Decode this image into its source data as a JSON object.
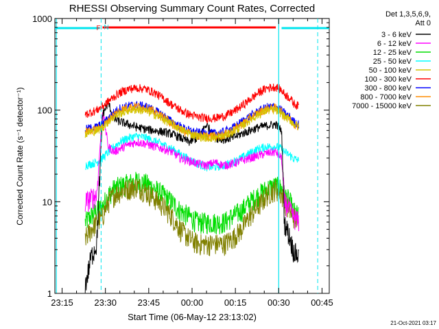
{
  "colors": {
    "background": "#ffffff",
    "axis": "#000000",
    "cyan_marker": "#00e5ee",
    "red_bar": "#ff0000"
  },
  "chart_data": {
    "type": "line",
    "title": "RHESSI Observing Summary Count Rates, Corrected",
    "xlabel": "Start Time (06-May-12 23:13:02)",
    "ylabel": "Corrected Count Rate (s⁻¹ detector⁻¹)",
    "yscale": "log",
    "ylim": [
      1,
      1000
    ],
    "xlim": [
      -0.5,
      94.5
    ],
    "x_units": "minutes after 23:13:02",
    "x_ticks": [
      {
        "x": 2,
        "label": "23:15"
      },
      {
        "x": 17,
        "label": "23:30"
      },
      {
        "x": 32,
        "label": "23:45"
      },
      {
        "x": 47,
        "label": "00:00"
      },
      {
        "x": 62,
        "label": "00:15"
      },
      {
        "x": 77,
        "label": "00:30"
      },
      {
        "x": 92,
        "label": "00:45"
      }
    ],
    "y_ticks": [
      {
        "y": 1,
        "label": "1"
      },
      {
        "y": 10,
        "label": "10"
      },
      {
        "y": 100,
        "label": "100"
      },
      {
        "y": 1000,
        "label": "1000"
      }
    ],
    "legend_header": [
      "Det 1,3,5,6,9,",
      "Att 0"
    ],
    "legend_position": "top-right, outside plot",
    "timestamp": "21-Oct-2021 03:17",
    "markers": {
      "F_label": "F",
      "N_label": "N",
      "flare_bar": {
        "x_start": 16,
        "x_end": 76,
        "y": 800
      },
      "night_start": -0.5,
      "night_end": 94.5,
      "day_segments": [
        [
          -0.5,
          15
        ],
        [
          78,
          94.5
        ]
      ],
      "saa_dashed_x": [
        15.5,
        90.5
      ],
      "solid_lines_x": [
        0,
        77
      ]
    },
    "series": [
      {
        "name": "3 - 6 keV",
        "color": "#000000",
        "x": [
          10,
          12,
          14,
          16,
          18,
          20,
          22,
          25,
          28,
          31,
          34,
          37,
          40,
          43,
          46,
          49,
          52,
          55,
          58,
          61,
          64,
          67,
          70,
          73,
          76,
          78,
          79,
          81,
          82,
          84
        ],
        "y": [
          1.2,
          2.5,
          3.5,
          90,
          120,
          80,
          75,
          70,
          65,
          62,
          60,
          58,
          55,
          50,
          45,
          50,
          70,
          50,
          48,
          50,
          55,
          60,
          65,
          68,
          70,
          60,
          6,
          4,
          3,
          2.5
        ]
      },
      {
        "name": "6 - 12 keV",
        "color": "#ff00ff",
        "x": [
          10,
          12,
          14,
          16,
          18,
          20,
          22,
          25,
          28,
          31,
          34,
          37,
          40,
          43,
          46,
          49,
          52,
          55,
          58,
          61,
          64,
          67,
          70,
          73,
          76,
          78,
          79,
          81,
          82,
          84
        ],
        "y": [
          10,
          11,
          12,
          100,
          40,
          35,
          38,
          42,
          45,
          43,
          40,
          38,
          35,
          30,
          28,
          26,
          25,
          27,
          25,
          26,
          28,
          30,
          32,
          34,
          35,
          30,
          10,
          8,
          7,
          6
        ]
      },
      {
        "name": "12 - 25 keV",
        "color": "#00dd00",
        "x": [
          10,
          12,
          14,
          16,
          18,
          20,
          22,
          25,
          28,
          31,
          34,
          37,
          40,
          43,
          46,
          49,
          52,
          55,
          58,
          61,
          64,
          67,
          70,
          73,
          76,
          78,
          79,
          81,
          82,
          84
        ],
        "y": [
          6,
          7,
          8,
          9,
          12,
          14,
          15,
          16,
          17,
          16,
          14,
          12,
          10,
          8,
          7,
          6,
          6,
          6,
          6,
          7,
          8,
          10,
          12,
          14,
          15,
          14,
          12,
          10,
          8,
          7
        ]
      },
      {
        "name": "25 - 50 keV",
        "color": "#00ffff",
        "x": [
          10,
          12,
          14,
          16,
          18,
          20,
          22,
          25,
          28,
          31,
          34,
          37,
          40,
          43,
          46,
          49,
          52,
          55,
          58,
          61,
          64,
          67,
          70,
          73,
          76,
          78,
          79,
          81,
          82,
          84
        ],
        "y": [
          25,
          26,
          27,
          30,
          35,
          40,
          45,
          50,
          52,
          50,
          46,
          42,
          38,
          33,
          29,
          26,
          24,
          24,
          25,
          27,
          30,
          34,
          38,
          40,
          40,
          38,
          35,
          32,
          30,
          28
        ]
      },
      {
        "name": "50 - 100 keV",
        "color": "#d4c400",
        "x": [
          10,
          12,
          14,
          16,
          18,
          20,
          22,
          25,
          28,
          31,
          34,
          37,
          40,
          43,
          46,
          49,
          52,
          55,
          58,
          61,
          64,
          67,
          70,
          73,
          76,
          78,
          79,
          81,
          82,
          84
        ],
        "y": [
          55,
          58,
          60,
          65,
          75,
          85,
          92,
          100,
          102,
          98,
          90,
          80,
          70,
          62,
          56,
          52,
          50,
          50,
          52,
          58,
          66,
          78,
          90,
          100,
          100,
          92,
          85,
          78,
          72,
          66
        ]
      },
      {
        "name": "100 - 300 keV",
        "color": "#ff0000",
        "x": [
          10,
          12,
          14,
          16,
          18,
          20,
          22,
          25,
          28,
          31,
          34,
          37,
          40,
          43,
          46,
          49,
          52,
          55,
          58,
          61,
          64,
          67,
          70,
          73,
          76,
          78,
          79,
          81,
          82,
          84
        ],
        "y": [
          90,
          95,
          100,
          110,
          125,
          140,
          155,
          170,
          175,
          170,
          155,
          135,
          115,
          100,
          90,
          84,
          82,
          82,
          86,
          95,
          110,
          130,
          155,
          175,
          180,
          165,
          150,
          135,
          120,
          110
        ]
      },
      {
        "name": "300 - 800 keV",
        "color": "#0000ff",
        "x": [
          10,
          12,
          14,
          16,
          18,
          20,
          22,
          25,
          28,
          31,
          34,
          37,
          40,
          43,
          46,
          49,
          52,
          55,
          58,
          61,
          64,
          67,
          70,
          73,
          76,
          78,
          79,
          81,
          82,
          84
        ],
        "y": [
          62,
          64,
          66,
          70,
          82,
          95,
          105,
          112,
          114,
          110,
          100,
          88,
          75,
          66,
          60,
          57,
          56,
          56,
          58,
          64,
          74,
          86,
          98,
          108,
          110,
          100,
          92,
          84,
          76,
          70
        ]
      },
      {
        "name": "800 - 7000 keV",
        "color": "#ff8c00",
        "x": [
          10,
          12,
          14,
          16,
          18,
          20,
          22,
          25,
          28,
          31,
          34,
          37,
          40,
          43,
          46,
          49,
          52,
          55,
          58,
          61,
          64,
          67,
          70,
          73,
          76,
          78,
          79,
          81,
          82,
          84
        ],
        "y": [
          58,
          60,
          62,
          66,
          78,
          90,
          100,
          108,
          110,
          106,
          96,
          84,
          72,
          62,
          56,
          53,
          52,
          52,
          54,
          60,
          70,
          82,
          94,
          104,
          106,
          96,
          88,
          80,
          72,
          66
        ]
      },
      {
        "name": "7000 - 15000 keV",
        "color": "#808000",
        "x": [
          10,
          12,
          14,
          16,
          18,
          20,
          22,
          25,
          28,
          31,
          34,
          37,
          40,
          43,
          46,
          49,
          52,
          55,
          58,
          61,
          64,
          67,
          70,
          73,
          76,
          78,
          79,
          81,
          82,
          84
        ],
        "y": [
          4,
          5,
          6,
          7,
          10,
          12,
          13,
          14,
          15,
          13,
          11,
          9,
          7,
          5,
          4,
          3.5,
          3.5,
          3.5,
          3.5,
          4,
          5,
          7,
          9,
          12,
          14,
          12,
          10,
          8,
          7,
          6
        ]
      }
    ]
  }
}
